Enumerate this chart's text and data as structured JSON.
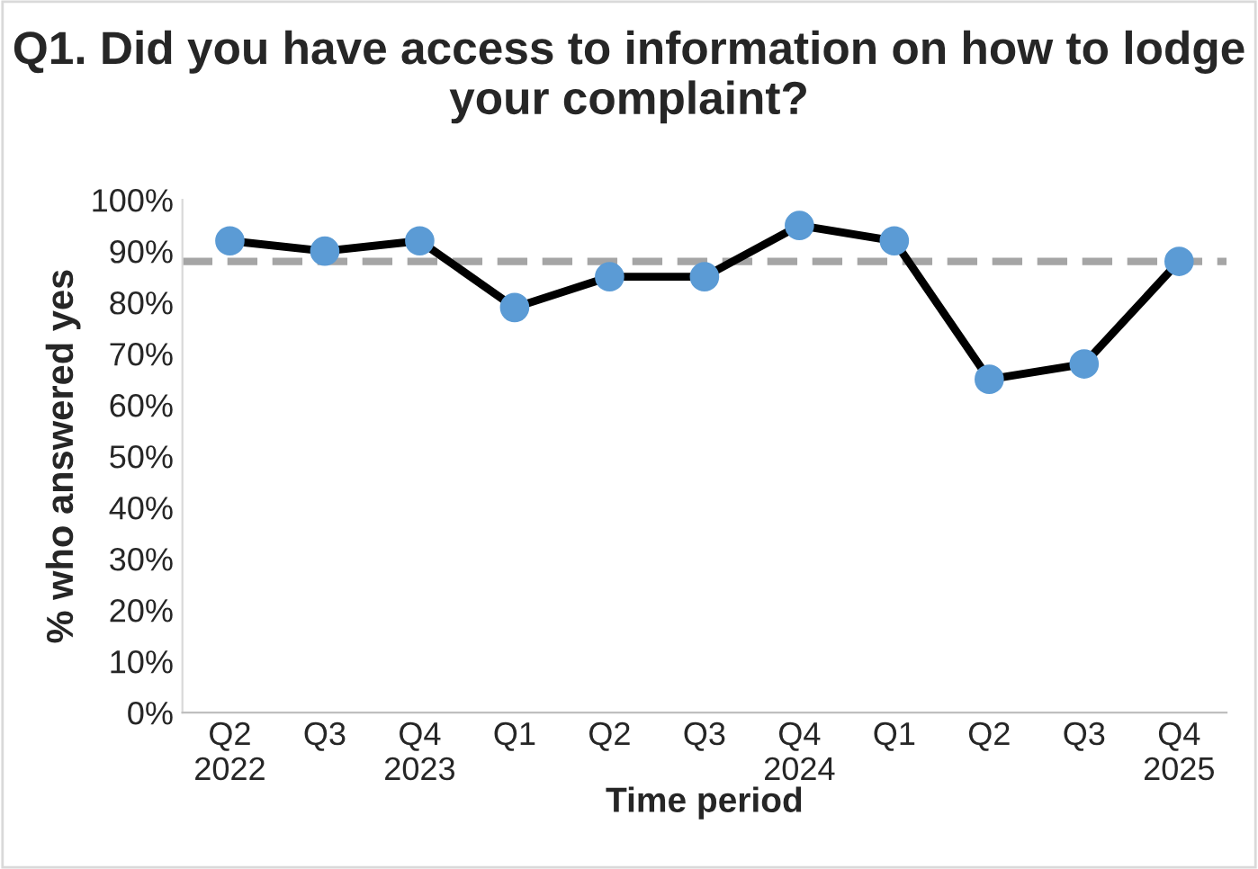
{
  "chart_data": {
    "type": "line",
    "title": "Q1. Did you have access to information on how to lodge your complaint?",
    "xlabel": "Time period",
    "ylabel": "% who answered yes",
    "categories": [
      "Q2\n2022",
      "Q3",
      "Q4\n2023",
      "Q1",
      "Q2",
      "Q3",
      "Q4\n2024",
      "Q1",
      "Q2",
      "Q3",
      "Q4\n2025"
    ],
    "series": [
      {
        "color": "#000000",
        "values": [
          92,
          90,
          92,
          79,
          85,
          85,
          95,
          92,
          65,
          68,
          88
        ]
      }
    ],
    "marker": "circle",
    "line_style": "solid",
    "ylim": [
      0,
      100
    ],
    "yticks": [
      {
        "value": 0,
        "label": "0%"
      },
      {
        "value": 10,
        "label": "10%"
      },
      {
        "value": 20,
        "label": "20%"
      },
      {
        "value": 30,
        "label": "30%"
      },
      {
        "value": 40,
        "label": "40%"
      },
      {
        "value": 50,
        "label": "50%"
      },
      {
        "value": 60,
        "label": "60%"
      },
      {
        "value": 70,
        "label": "70%"
      },
      {
        "value": 80,
        "label": "80%"
      },
      {
        "value": 90,
        "label": "90%"
      },
      {
        "value": 100,
        "label": "100%"
      }
    ],
    "ref_lines": [
      {
        "axis": "y",
        "value": 88,
        "color": "#a5a5a5",
        "line_style": "dashed"
      }
    ],
    "grid": false
  }
}
